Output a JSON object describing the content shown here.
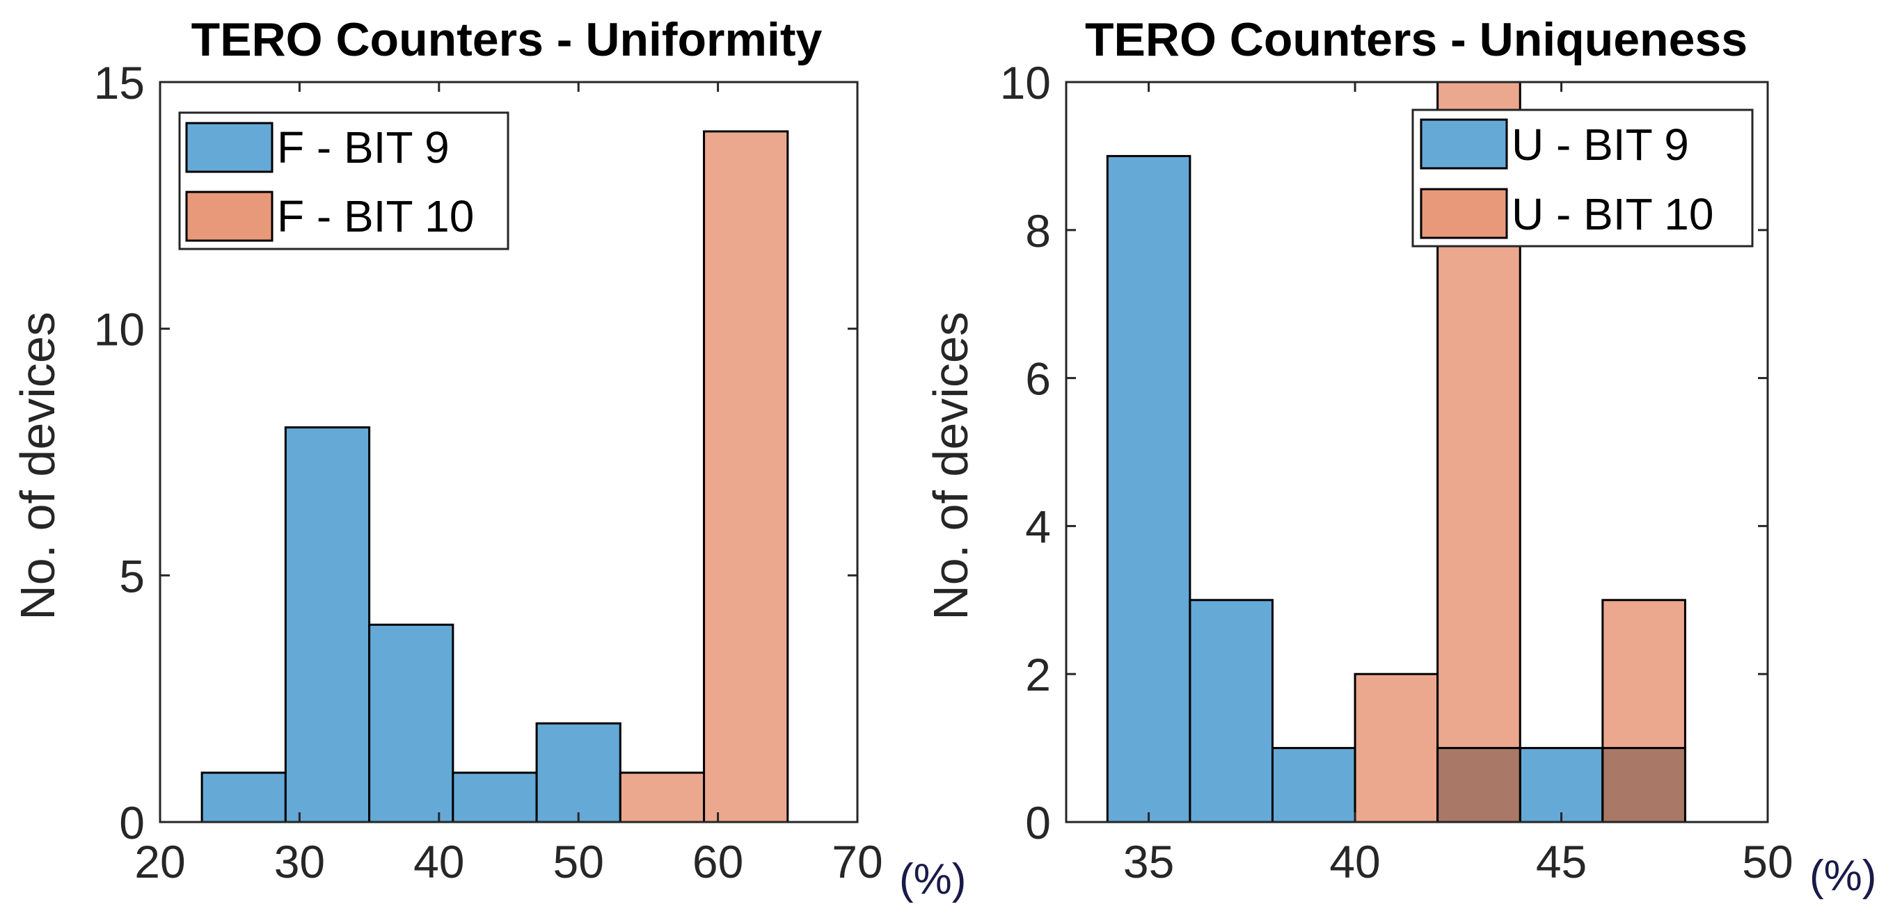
{
  "colors": {
    "series_blue": "#65a9d7",
    "series_orange": "#e8997a",
    "overlap": "#a97866",
    "axis": "#262626"
  },
  "chart_data": [
    {
      "type": "bar",
      "title": "TERO Counters - Uniformity",
      "xlabel": "",
      "ylabel": "No. of devices",
      "unit_label": "(%)",
      "xlim": [
        20,
        70
      ],
      "ylim": [
        0,
        15
      ],
      "xticks": [
        20,
        30,
        40,
        50,
        60,
        70
      ],
      "yticks": [
        0,
        5,
        10,
        15
      ],
      "legend_position": "top-left",
      "series": [
        {
          "name": "F - BIT 9",
          "color_key": "series_blue",
          "bins": [
            {
              "x0": 23,
              "x1": 29,
              "value": 1
            },
            {
              "x0": 29,
              "x1": 35,
              "value": 8
            },
            {
              "x0": 35,
              "x1": 41,
              "value": 4
            },
            {
              "x0": 41,
              "x1": 47,
              "value": 1
            },
            {
              "x0": 47,
              "x1": 53,
              "value": 2
            }
          ]
        },
        {
          "name": "F - BIT 10",
          "color_key": "series_orange",
          "bins": [
            {
              "x0": 53,
              "x1": 59,
              "value": 1
            },
            {
              "x0": 59,
              "x1": 65,
              "value": 14
            }
          ]
        }
      ]
    },
    {
      "type": "bar",
      "title": "TERO Counters - Uniqueness",
      "xlabel": "",
      "ylabel": "No. of devices",
      "unit_label": "(%)",
      "xlim": [
        33,
        50
      ],
      "ylim": [
        0,
        10
      ],
      "xticks": [
        35,
        40,
        45,
        50
      ],
      "yticks": [
        0,
        2,
        4,
        6,
        8,
        10
      ],
      "legend_position": "top-right",
      "series": [
        {
          "name": "U - BIT 9",
          "color_key": "series_blue",
          "bins": [
            {
              "x0": 34,
              "x1": 36,
              "value": 9
            },
            {
              "x0": 36,
              "x1": 38,
              "value": 3
            },
            {
              "x0": 38,
              "x1": 40,
              "value": 1
            },
            {
              "x0": 42,
              "x1": 44,
              "value": 1
            },
            {
              "x0": 44,
              "x1": 46,
              "value": 1
            },
            {
              "x0": 46,
              "x1": 48,
              "value": 1
            }
          ]
        },
        {
          "name": "U - BIT 10",
          "color_key": "series_orange",
          "bins": [
            {
              "x0": 40,
              "x1": 42,
              "value": 2
            },
            {
              "x0": 42,
              "x1": 44,
              "value": 10
            },
            {
              "x0": 46,
              "x1": 48,
              "value": 3
            }
          ]
        }
      ]
    }
  ]
}
